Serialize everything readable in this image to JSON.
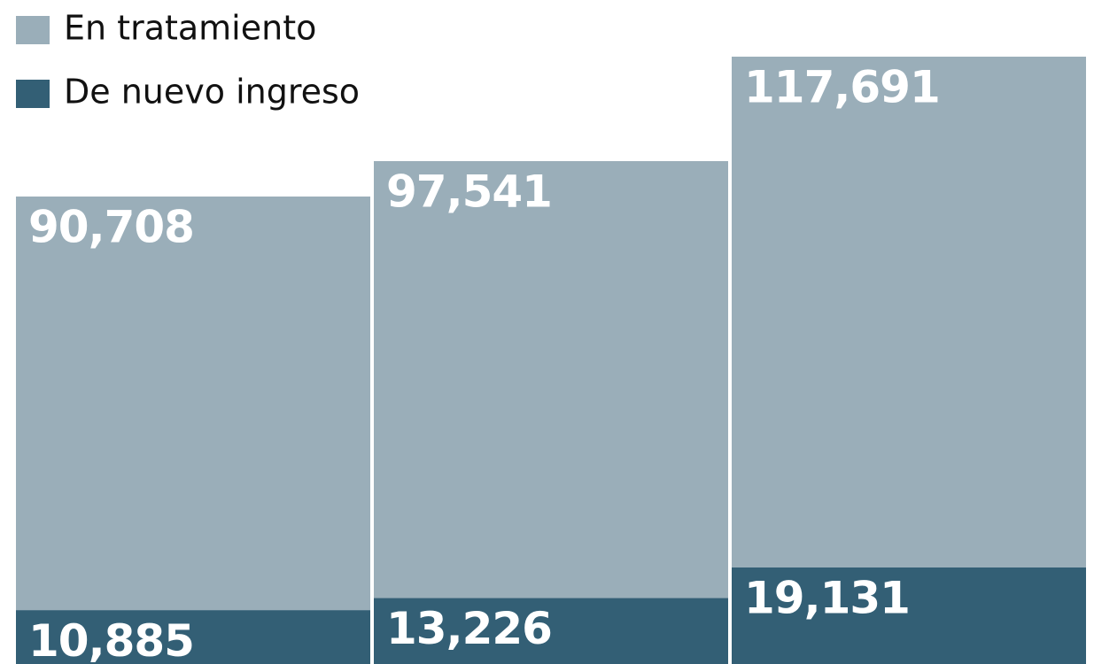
{
  "chart_data": {
    "type": "overlap_bar",
    "series": [
      {
        "name": "En tratamiento",
        "color": "#9aaeb9",
        "values": [
          90708,
          97541,
          117691
        ],
        "value_labels": [
          "90,708",
          "97,541",
          "117,691"
        ]
      },
      {
        "name": "De nuevo ingreso",
        "color": "#335f75",
        "values": [
          10885,
          13226,
          19131
        ],
        "value_labels": [
          "10,885",
          "13,226",
          "19,131"
        ]
      }
    ],
    "legend": "top-left"
  }
}
